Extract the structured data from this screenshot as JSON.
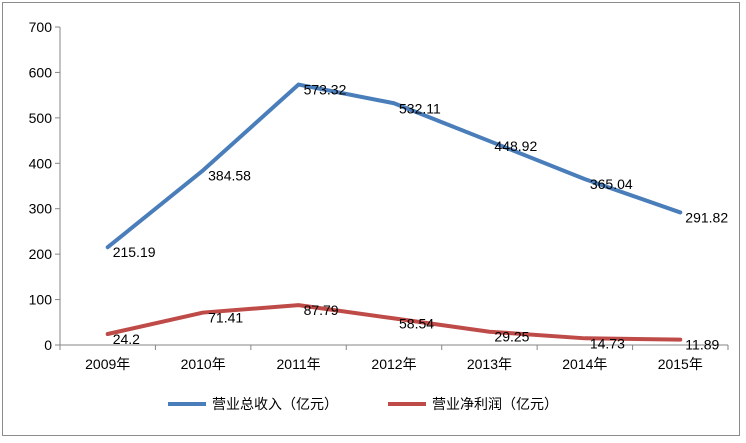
{
  "chart_data": {
    "type": "line",
    "categories": [
      "2009年",
      "2010年",
      "2011年",
      "2012年",
      "2013年",
      "2014年",
      "2015年"
    ],
    "ylim": [
      0,
      700
    ],
    "yticks": [
      "0",
      "100",
      "200",
      "300",
      "400",
      "500",
      "600",
      "700"
    ],
    "grid": false,
    "legend_position": "bottom",
    "series": [
      {
        "name": "营业总收入（亿元）",
        "color": "#4a7ebb",
        "values": [
          215.19,
          384.58,
          573.32,
          532.11,
          448.92,
          365.04,
          291.82
        ],
        "labels": [
          "215.19",
          "384.58",
          "573.32",
          "532.11",
          "448.92",
          "365.04",
          "291.82"
        ]
      },
      {
        "name": "营业净利润（亿元）",
        "color": "#be4b48",
        "values": [
          24.2,
          71.41,
          87.79,
          58.54,
          29.25,
          14.73,
          11.89
        ],
        "labels": [
          "24.2",
          "71.41",
          "87.79",
          "58.54",
          "29.25",
          "14.73",
          "11.89"
        ]
      }
    ]
  }
}
